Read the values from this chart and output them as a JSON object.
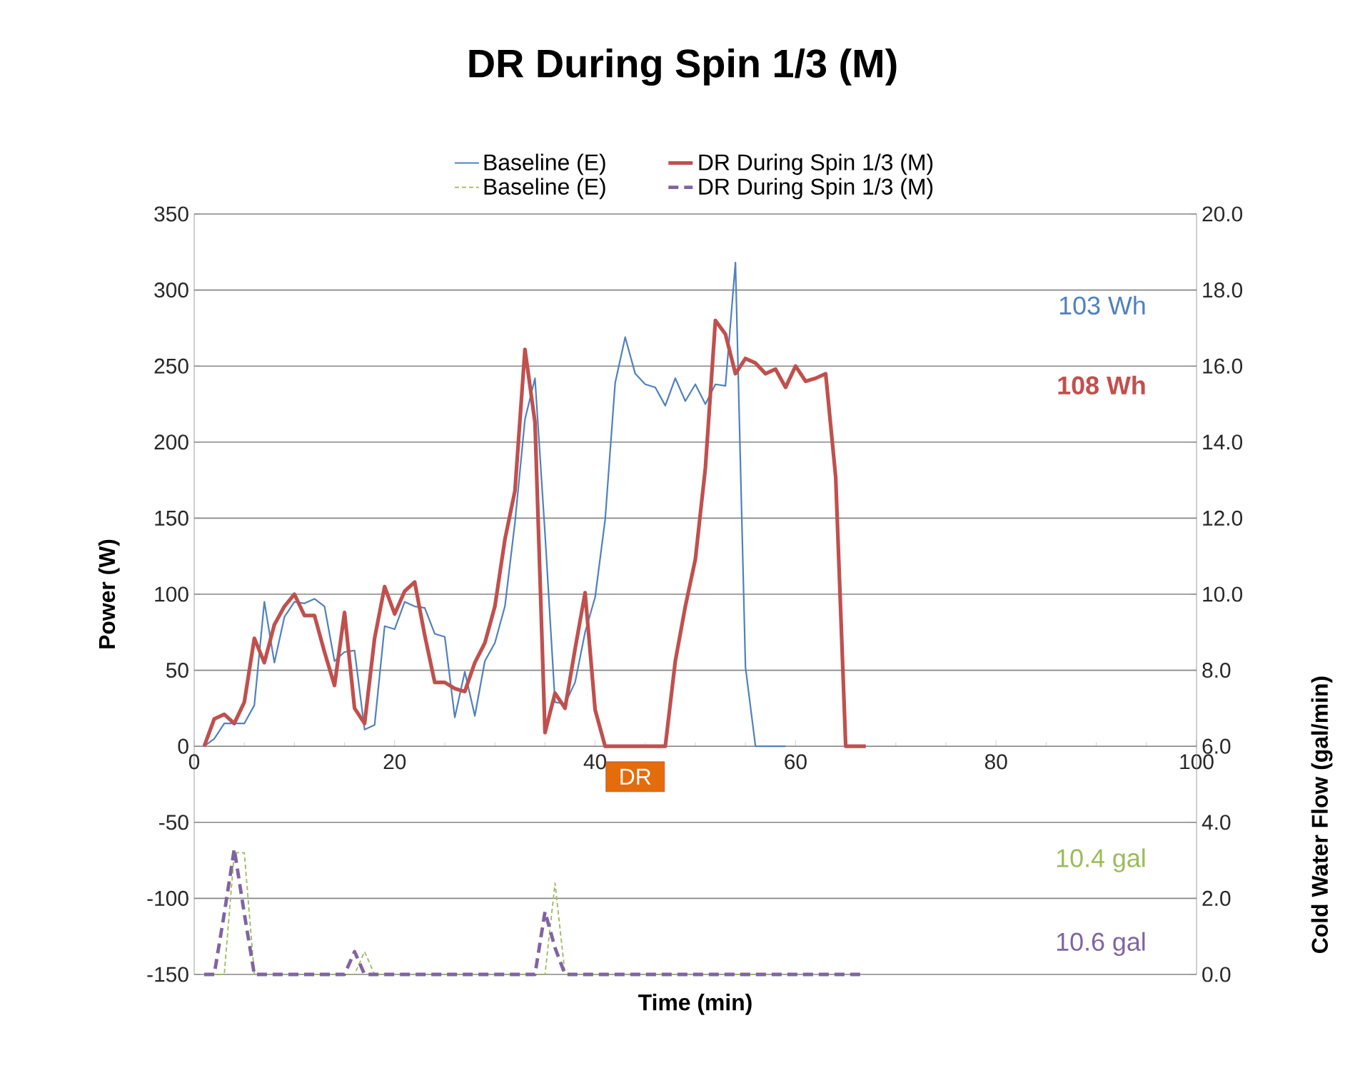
{
  "chart_data": {
    "type": "line",
    "title": "DR During Spin 1/3 (M)",
    "xlabel": "Time (min)",
    "ylabel": "Power (W)",
    "y2label": "Cold Water Flow (gal/min)",
    "xlim": [
      0,
      100
    ],
    "xticks": [
      0,
      20,
      40,
      60,
      80,
      100
    ],
    "ylim": [
      -150,
      350
    ],
    "yticks": [
      -150,
      -100,
      -50,
      0,
      50,
      100,
      150,
      200,
      250,
      300,
      350
    ],
    "y2lim": [
      0,
      20
    ],
    "y2ticks": [
      {
        "value": 0,
        "label": "0.0"
      },
      {
        "value": 2,
        "label": "2.0"
      },
      {
        "value": 4,
        "label": "4.0"
      },
      {
        "value": 6,
        "label": "6.0"
      },
      {
        "value": 8,
        "label": "8.0"
      },
      {
        "value": 10,
        "label": "10.0"
      },
      {
        "value": 12,
        "label": "12.0"
      },
      {
        "value": 14,
        "label": "14.0"
      },
      {
        "value": 16,
        "label": "16.0"
      },
      {
        "value": 18,
        "label": "18.0"
      },
      {
        "value": 20,
        "label": "20.0"
      }
    ],
    "grid": "y",
    "legend": "top",
    "series": [
      {
        "name": "Baseline (E)",
        "color": "#4f81bd",
        "axis": "y",
        "line_style": "solid",
        "x": [
          1,
          2,
          3,
          4,
          5,
          6,
          7,
          8,
          9,
          10,
          11,
          12,
          13,
          14,
          15,
          16,
          17,
          18,
          19,
          20,
          21,
          22,
          23,
          24,
          25,
          26,
          27,
          28,
          29,
          30,
          31,
          32,
          33,
          34,
          35,
          36,
          37,
          38,
          39,
          40,
          41,
          42,
          43,
          44,
          45,
          46,
          47,
          48,
          49,
          50,
          51,
          52,
          53,
          54,
          55,
          56,
          57,
          58,
          59
        ],
        "values": [
          0,
          5,
          15,
          15,
          15,
          27,
          95,
          55,
          85,
          95,
          94,
          97,
          92,
          56,
          62,
          63,
          11,
          14,
          79,
          77,
          95,
          92,
          91,
          74,
          72,
          19,
          49,
          20,
          56,
          68,
          92,
          147,
          215,
          242,
          140,
          29,
          28,
          42,
          75,
          98,
          149,
          239,
          269,
          245,
          238,
          236,
          224,
          242,
          227,
          238,
          225,
          238,
          237,
          318,
          52,
          0,
          0,
          0,
          0
        ]
      },
      {
        "name": "DR During Spin 1/3 (M)",
        "color": "#c0504d",
        "axis": "y",
        "line_style": "solid",
        "x": [
          1,
          2,
          3,
          4,
          5,
          6,
          7,
          8,
          9,
          10,
          11,
          12,
          13,
          14,
          15,
          16,
          17,
          18,
          19,
          20,
          21,
          22,
          23,
          24,
          25,
          26,
          27,
          28,
          29,
          30,
          31,
          32,
          33,
          34,
          35,
          36,
          37,
          38,
          39,
          40,
          41,
          42,
          43,
          44,
          45,
          46,
          47,
          48,
          49,
          50,
          51,
          52,
          53,
          54,
          55,
          56,
          57,
          58,
          59,
          60,
          61,
          62,
          63,
          64,
          65,
          66,
          67
        ],
        "values": [
          0,
          18,
          21,
          15,
          29,
          71,
          55,
          80,
          92,
          100,
          86,
          86,
          62,
          40,
          88,
          25,
          15,
          71,
          105,
          87,
          102,
          108,
          73,
          42,
          42,
          38,
          36,
          55,
          68,
          92,
          136,
          168,
          261,
          213,
          9,
          35,
          25,
          64,
          101,
          24,
          0,
          0,
          0,
          0,
          0,
          0,
          0,
          56,
          92,
          123,
          183,
          280,
          271,
          245,
          255,
          252,
          245,
          248,
          236,
          250,
          240,
          242,
          245,
          177,
          0,
          0,
          0
        ]
      },
      {
        "name": "Baseline (E)",
        "color": "#9bbb59",
        "axis": "y2",
        "line_style": "dotted",
        "x": [
          1,
          2,
          3,
          4,
          5,
          6,
          7,
          8,
          9,
          10,
          11,
          12,
          13,
          14,
          15,
          16,
          17,
          18,
          19,
          20,
          21,
          22,
          23,
          24,
          25,
          26,
          27,
          28,
          29,
          30,
          31,
          32,
          33,
          34,
          35,
          36,
          37,
          38,
          39,
          40,
          41,
          42,
          43,
          44,
          45,
          46,
          47,
          48,
          49,
          50,
          51,
          52,
          53,
          54,
          55,
          56,
          57,
          58,
          59
        ],
        "values": [
          0,
          0,
          0,
          3.2,
          3.2,
          0,
          0,
          0,
          0,
          0,
          0,
          0,
          0,
          0,
          0,
          0,
          0.6,
          0,
          0,
          0,
          0,
          0,
          0,
          0,
          0,
          0,
          0,
          0,
          0,
          0,
          0,
          0,
          0,
          0,
          0,
          2.4,
          0,
          0,
          0,
          0,
          0,
          0,
          0,
          0,
          0,
          0,
          0,
          0,
          0,
          0,
          0,
          0,
          0,
          0,
          0,
          0,
          0,
          0,
          0
        ]
      },
      {
        "name": "DR During Spin 1/3 (M)",
        "color": "#8064a2",
        "axis": "y2",
        "line_style": "dashed",
        "x": [
          1,
          2,
          3,
          4,
          5,
          6,
          7,
          8,
          9,
          10,
          11,
          12,
          13,
          14,
          15,
          16,
          17,
          18,
          19,
          20,
          21,
          22,
          23,
          24,
          25,
          26,
          27,
          28,
          29,
          30,
          31,
          32,
          33,
          34,
          35,
          36,
          37,
          38,
          39,
          40,
          41,
          42,
          43,
          44,
          45,
          46,
          47,
          48,
          49,
          50,
          51,
          52,
          53,
          54,
          55,
          56,
          57,
          58,
          59,
          60,
          61,
          62,
          63,
          64,
          65,
          66,
          67
        ],
        "values": [
          0,
          0,
          1.6,
          3.3,
          1.6,
          0,
          0,
          0,
          0,
          0,
          0,
          0,
          0,
          0,
          0,
          0.6,
          0,
          0,
          0,
          0,
          0,
          0,
          0,
          0,
          0,
          0,
          0,
          0,
          0,
          0,
          0,
          0,
          0,
          0,
          1.65,
          0.7,
          0,
          0,
          0,
          0,
          0,
          0,
          0,
          0,
          0,
          0,
          0,
          0,
          0,
          0,
          0,
          0,
          0,
          0,
          0,
          0,
          0,
          0,
          0,
          0,
          0,
          0,
          0,
          0,
          0,
          0,
          0
        ]
      }
    ],
    "annotations": [
      "103 Wh",
      "108 Wh",
      "10.4 gal",
      "10.6 gal",
      {
        "text": "DR",
        "x": 44,
        "y": -20
      }
    ]
  }
}
